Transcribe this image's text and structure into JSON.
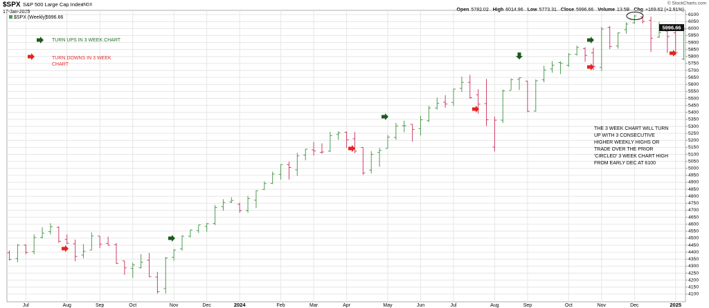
{
  "chart_data": {
    "type": "ohlc",
    "title": "$SPX",
    "subtitle": "S&P 500 Large Cap Index",
    "exchange": "INDX",
    "date": "17-Jan-2025",
    "watermark": "© StockCharts.com",
    "legend": "$SPX (Weekly)",
    "last_label": "5996.66",
    "header": [
      {
        "label": "Open",
        "value": "5782.02"
      },
      {
        "label": "High",
        "value": "6014.96"
      },
      {
        "label": "Low",
        "value": "5773.31"
      },
      {
        "label": "Close",
        "value": "5996.66"
      },
      {
        "label": "Volume",
        "value": "13.5B"
      },
      {
        "label": "Chg",
        "value": "+169.62 (+2.91%)"
      }
    ],
    "up_color": "#4f9a4f",
    "down_color": "#cc3f66",
    "grid": true,
    "open": [
      4396,
      4355,
      4450,
      4404,
      4505,
      4547,
      4578,
      4491,
      4460,
      4380,
      4415,
      4515,
      4463,
      4454,
      4338,
      4284,
      4289,
      4342,
      4222,
      4140,
      4364,
      4424,
      4514,
      4555,
      4584,
      4605,
      4726,
      4759,
      4743,
      4698,
      4772,
      4849,
      4892,
      4957,
      5026,
      4989,
      5094,
      5132,
      5114,
      5123,
      5242,
      5258,
      5211,
      5149,
      4987,
      5114,
      5142,
      5221,
      5305,
      5315,
      5284,
      5341,
      5432,
      5473,
      5471,
      5572,
      5615,
      5526,
      5463,
      5152,
      5344,
      5557,
      5637,
      5624,
      5409,
      5633,
      5711,
      5757,
      5737,
      5816,
      5857,
      5826,
      5723,
      6008,
      5875,
      5992,
      6041,
      6083,
      6058,
      5938,
      5982,
      5969,
      5782.02
    ],
    "high": [
      4413,
      4458,
      4456,
      4527,
      4578,
      4607,
      4584,
      4527,
      4490,
      4458,
      4541,
      4516,
      4511,
      4465,
      4338,
      4324,
      4386,
      4394,
      4259,
      4366,
      4421,
      4521,
      4560,
      4595,
      4609,
      4738,
      4779,
      4793,
      4754,
      4802,
      4842,
      4907,
      4976,
      5030,
      5048,
      5111,
      5140,
      5189,
      5179,
      5261,
      5265,
      5264,
      5260,
      5150,
      5123,
      5146,
      5239,
      5325,
      5341,
      5315,
      5375,
      5447,
      5506,
      5524,
      5570,
      5656,
      5669,
      5566,
      5639,
      5370,
      5563,
      5643,
      5651,
      5626,
      5636,
      5734,
      5767,
      5765,
      5823,
      5878,
      5866,
      5863,
      6012,
      6018,
      5972,
      6044,
      6099,
      6086,
      6085,
      6049,
      5993,
      6022,
      6014.96
    ],
    "low": [
      4341,
      4328,
      4385,
      4385,
      4497,
      4527,
      4466,
      4457,
      4335,
      4356,
      4414,
      4430,
      4449,
      4316,
      4238,
      4216,
      4283,
      4223,
      4104,
      4103,
      4340,
      4411,
      4505,
      4537,
      4546,
      4593,
      4697,
      4751,
      4682,
      4682,
      4715,
      4845,
      4887,
      4919,
      4920,
      4946,
      5057,
      5092,
      5104,
      5117,
      5204,
      5146,
      5108,
      4953,
      4963,
      5011,
      5142,
      5204,
      5257,
      5191,
      5234,
      5331,
      5420,
      5433,
      5447,
      5546,
      5497,
      5390,
      5302,
      5120,
      5324,
      5560,
      5560,
      5402,
      5406,
      5615,
      5684,
      5674,
      5726,
      5807,
      5762,
      5703,
      5697,
      5853,
      5856,
      5964,
      6034,
      6036,
      5832,
      5933,
      5825,
      5808,
      5773.31
    ],
    "close": [
      4348,
      4450,
      4399,
      4505,
      4536,
      4582,
      4478,
      4464,
      4370,
      4406,
      4515,
      4457,
      4450,
      4320,
      4288,
      4309,
      4328,
      4224,
      4117,
      4358,
      4415,
      4514,
      4559,
      4595,
      4604,
      4719,
      4755,
      4770,
      4697,
      4784,
      4840,
      4891,
      4959,
      5027,
      5006,
      5089,
      5137,
      5124,
      5117,
      5234,
      5254,
      5204,
      5123,
      4967,
      5100,
      5128,
      5223,
      5303,
      5305,
      5278,
      5347,
      5432,
      5465,
      5460,
      5567,
      5615,
      5505,
      5459,
      5347,
      5344,
      5554,
      5634,
      5648,
      5408,
      5626,
      5703,
      5738,
      5751,
      5815,
      5864,
      5808,
      5729,
      5996,
      5871,
      5969,
      6032,
      6090,
      6051,
      5931,
      5971,
      5942,
      5827,
      5996.66
    ],
    "xlim": [
      -0.3,
      82.2
    ],
    "xticks": [
      {
        "value": 2,
        "label": "Jul"
      },
      {
        "value": 7,
        "label": "Aug"
      },
      {
        "value": 11,
        "label": "Sep"
      },
      {
        "value": 15,
        "label": "Oct"
      },
      {
        "value": 20,
        "label": "Nov"
      },
      {
        "value": 24,
        "label": "Dec"
      },
      {
        "value": 28,
        "label": "2024"
      },
      {
        "value": 33,
        "label": "Feb"
      },
      {
        "value": 37,
        "label": "Mar"
      },
      {
        "value": 41,
        "label": "Apr"
      },
      {
        "value": 46,
        "label": "May"
      },
      {
        "value": 50,
        "label": "Jun"
      },
      {
        "value": 54,
        "label": "Jul"
      },
      {
        "value": 59,
        "label": "Aug"
      },
      {
        "value": 63,
        "label": "Sep"
      },
      {
        "value": 68,
        "label": "Oct"
      },
      {
        "value": 72,
        "label": "Nov"
      },
      {
        "value": 76,
        "label": "Dec"
      },
      {
        "value": 81,
        "label": "2025"
      }
    ],
    "ylim": [
      4045,
      6130
    ],
    "yticks": [
      4100,
      4150,
      4200,
      4250,
      4300,
      4350,
      4400,
      4450,
      4500,
      4550,
      4600,
      4650,
      4700,
      4750,
      4800,
      4850,
      4900,
      4950,
      5000,
      5050,
      5100,
      5150,
      5200,
      5250,
      5300,
      5350,
      5400,
      5450,
      5500,
      5550,
      5600,
      5650,
      5700,
      5750,
      5800,
      5850,
      5900,
      5950,
      6000,
      6050,
      6100
    ],
    "annotations": {
      "turn_ups": "TURN UPS IN 3 WEEK CHART",
      "turn_downs": [
        "TURN DOWNS IN 3 WEEK",
        "CHART"
      ],
      "note": [
        "THE 3 WEEK CHART WILL TURN",
        "UP WITH 3 CONSECUTIVE",
        "HIGHER WEEKLY HIGHS OR",
        "TRADE OVER THE PRIOR",
        "'CIRCLED' 3 WEEK CHART HIGH",
        "FROM EARLY DEC AT 6100"
      ]
    }
  }
}
